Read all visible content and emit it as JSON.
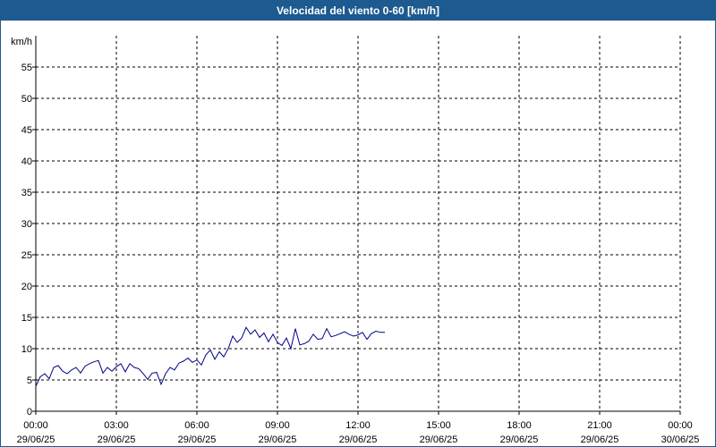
{
  "window": {
    "title": "Velocidad del viento 0-60 [km/h]"
  },
  "colors": {
    "title_bar": "#1c5a8f",
    "series": "#00008b",
    "grid": "#000000"
  },
  "chart_data": {
    "type": "line",
    "title": "Velocidad del viento 0-60 [km/h]",
    "ylabel": "km/h",
    "xlabel": "",
    "ylim": [
      0,
      60
    ],
    "y_ticks": [
      0,
      5,
      10,
      15,
      20,
      25,
      30,
      35,
      40,
      45,
      50,
      55
    ],
    "xlim": [
      "29/06/25 00:00",
      "30/06/25 00:00"
    ],
    "x_ticks": [
      {
        "time": "00:00",
        "date": "29/06/25"
      },
      {
        "time": "03:00",
        "date": "29/06/25"
      },
      {
        "time": "06:00",
        "date": "29/06/25"
      },
      {
        "time": "09:00",
        "date": "29/06/25"
      },
      {
        "time": "12:00",
        "date": "29/06/25"
      },
      {
        "time": "15:00",
        "date": "29/06/25"
      },
      {
        "time": "18:00",
        "date": "29/06/25"
      },
      {
        "time": "21:00",
        "date": "29/06/25"
      },
      {
        "time": "00:00",
        "date": "30/06/25"
      }
    ],
    "grid": true,
    "series": [
      {
        "name": "",
        "x": [
          "00:00",
          "00:10",
          "00:20",
          "00:30",
          "00:40",
          "00:50",
          "01:00",
          "01:10",
          "01:20",
          "01:30",
          "01:40",
          "01:50",
          "02:00",
          "02:10",
          "02:20",
          "02:30",
          "02:40",
          "02:50",
          "03:00",
          "03:10",
          "03:20",
          "03:30",
          "03:40",
          "03:50",
          "04:00",
          "04:10",
          "04:20",
          "04:30",
          "04:40",
          "04:50",
          "05:00",
          "05:10",
          "05:20",
          "05:30",
          "05:40",
          "05:50",
          "06:00",
          "06:10",
          "06:20",
          "06:30",
          "06:40",
          "06:50",
          "07:00",
          "07:10",
          "07:20",
          "07:30",
          "07:40",
          "07:50",
          "08:00",
          "08:10",
          "08:20",
          "08:30",
          "08:40",
          "08:50",
          "09:00",
          "09:10",
          "09:20",
          "09:30",
          "09:40",
          "09:50",
          "10:00",
          "10:10",
          "10:20",
          "10:30",
          "10:40",
          "10:50",
          "11:00",
          "11:10",
          "11:20",
          "11:30",
          "11:40",
          "11:50",
          "12:00",
          "12:10",
          "12:20",
          "12:30",
          "12:40",
          "12:50",
          "13:00"
        ],
        "values": [
          4.0,
          5.5,
          6.0,
          5.2,
          7.0,
          7.3,
          6.4,
          6.0,
          6.6,
          7.0,
          6.1,
          7.2,
          7.6,
          7.9,
          8.1,
          6.1,
          7.0,
          6.4,
          7.1,
          7.6,
          6.3,
          7.6,
          7.0,
          6.8,
          6.0,
          5.1,
          6.1,
          6.2,
          4.3,
          6.0,
          7.0,
          6.6,
          7.7,
          8.0,
          8.5,
          7.8,
          8.2,
          7.4,
          9.0,
          9.8,
          8.3,
          9.5,
          8.7,
          10.0,
          12.0,
          11.0,
          11.7,
          13.4,
          12.3,
          13.0,
          11.8,
          12.5,
          11.1,
          12.3,
          11.0,
          10.5,
          11.7,
          10.0,
          13.2,
          10.6,
          10.8,
          11.2,
          12.3,
          11.5,
          11.6,
          13.2,
          11.9,
          12.1,
          12.4,
          12.7,
          12.3,
          12.0,
          12.2,
          12.6,
          11.5,
          12.4,
          12.8,
          12.6,
          12.6
        ]
      }
    ]
  }
}
